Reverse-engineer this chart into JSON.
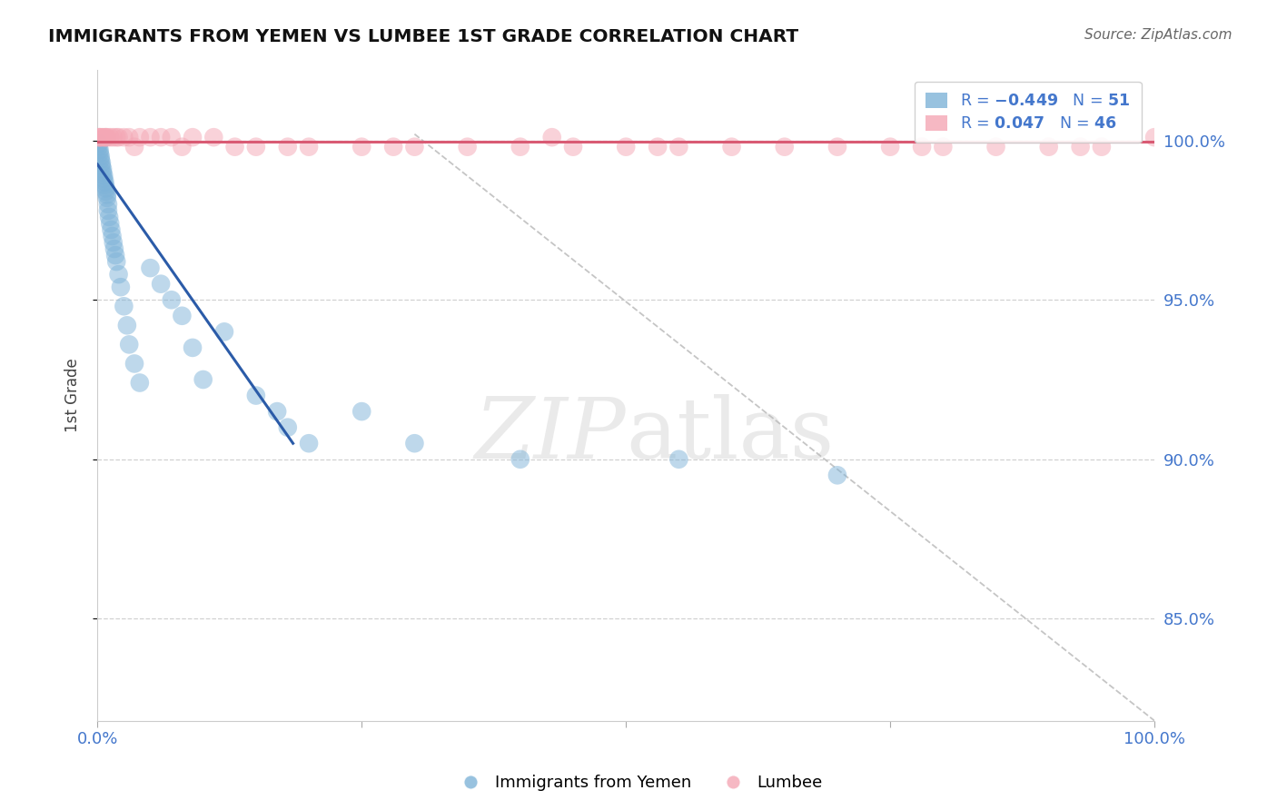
{
  "title": "IMMIGRANTS FROM YEMEN VS LUMBEE 1ST GRADE CORRELATION CHART",
  "source": "Source: ZipAtlas.com",
  "ylabel": "1st Grade",
  "yticks": [
    0.85,
    0.9,
    0.95,
    1.0
  ],
  "ytick_labels": [
    "85.0%",
    "90.0%",
    "95.0%",
    "100.0%"
  ],
  "xlim": [
    0.0,
    1.0
  ],
  "ylim": [
    0.818,
    1.022
  ],
  "blue_color": "#7EB3D8",
  "pink_color": "#F4A7B5",
  "blue_line_color": "#2B5BA8",
  "pink_line_color": "#D95B74",
  "diag_color": "#BBBBBB",
  "grid_color": "#CCCCCC",
  "axis_label_color": "#4477CC",
  "title_color": "#111111",
  "source_color": "#666666",
  "watermark_color": "#DDDDDD",
  "background_color": "#FFFFFF",
  "blue_scatter_x": [
    0.001,
    0.001,
    0.002,
    0.002,
    0.003,
    0.003,
    0.004,
    0.004,
    0.005,
    0.005,
    0.006,
    0.006,
    0.007,
    0.007,
    0.008,
    0.008,
    0.009,
    0.009,
    0.01,
    0.01,
    0.011,
    0.012,
    0.013,
    0.014,
    0.015,
    0.016,
    0.017,
    0.018,
    0.02,
    0.022,
    0.025,
    0.028,
    0.03,
    0.035,
    0.04,
    0.05,
    0.06,
    0.07,
    0.08,
    0.09,
    0.1,
    0.12,
    0.15,
    0.17,
    0.18,
    0.2,
    0.25,
    0.3,
    0.4,
    0.55,
    0.7
  ],
  "blue_scatter_y": [
    0.999,
    0.998,
    0.997,
    0.996,
    0.995,
    0.994,
    0.993,
    0.992,
    0.991,
    0.99,
    0.989,
    0.988,
    0.987,
    0.986,
    0.985,
    0.984,
    0.983,
    0.982,
    0.98,
    0.978,
    0.976,
    0.974,
    0.972,
    0.97,
    0.968,
    0.966,
    0.964,
    0.962,
    0.958,
    0.954,
    0.948,
    0.942,
    0.936,
    0.93,
    0.924,
    0.96,
    0.955,
    0.95,
    0.945,
    0.935,
    0.925,
    0.94,
    0.92,
    0.915,
    0.91,
    0.905,
    0.915,
    0.905,
    0.9,
    0.9,
    0.895
  ],
  "pink_scatter_x": [
    0.001,
    0.002,
    0.003,
    0.005,
    0.007,
    0.009,
    0.012,
    0.015,
    0.02,
    0.025,
    0.03,
    0.04,
    0.05,
    0.07,
    0.09,
    0.11,
    0.15,
    0.2,
    0.25,
    0.3,
    0.35,
    0.4,
    0.45,
    0.5,
    0.55,
    0.6,
    0.65,
    0.7,
    0.75,
    0.8,
    0.85,
    0.9,
    0.95,
    1.0,
    0.008,
    0.018,
    0.035,
    0.06,
    0.08,
    0.13,
    0.18,
    0.28,
    0.43,
    0.53,
    0.78,
    0.93
  ],
  "pink_scatter_y": [
    1.001,
    1.001,
    1.001,
    1.001,
    1.001,
    1.001,
    1.001,
    1.001,
    1.001,
    1.001,
    1.001,
    1.001,
    1.001,
    1.001,
    1.001,
    1.001,
    0.998,
    0.998,
    0.998,
    0.998,
    0.998,
    0.998,
    0.998,
    0.998,
    0.998,
    0.998,
    0.998,
    0.998,
    0.998,
    0.998,
    0.998,
    0.998,
    0.998,
    1.001,
    1.001,
    1.001,
    0.998,
    1.001,
    0.998,
    0.998,
    0.998,
    0.998,
    1.001,
    0.998,
    0.998,
    0.998
  ],
  "blue_line_x": [
    0.0,
    0.185
  ],
  "blue_line_y": [
    0.9925,
    0.905
  ],
  "pink_line_x": [
    0.0,
    1.0
  ],
  "pink_line_y": [
    0.9995,
    0.9995
  ],
  "diag_line_x": [
    0.3,
    1.0
  ],
  "diag_line_y": [
    1.002,
    0.818
  ]
}
